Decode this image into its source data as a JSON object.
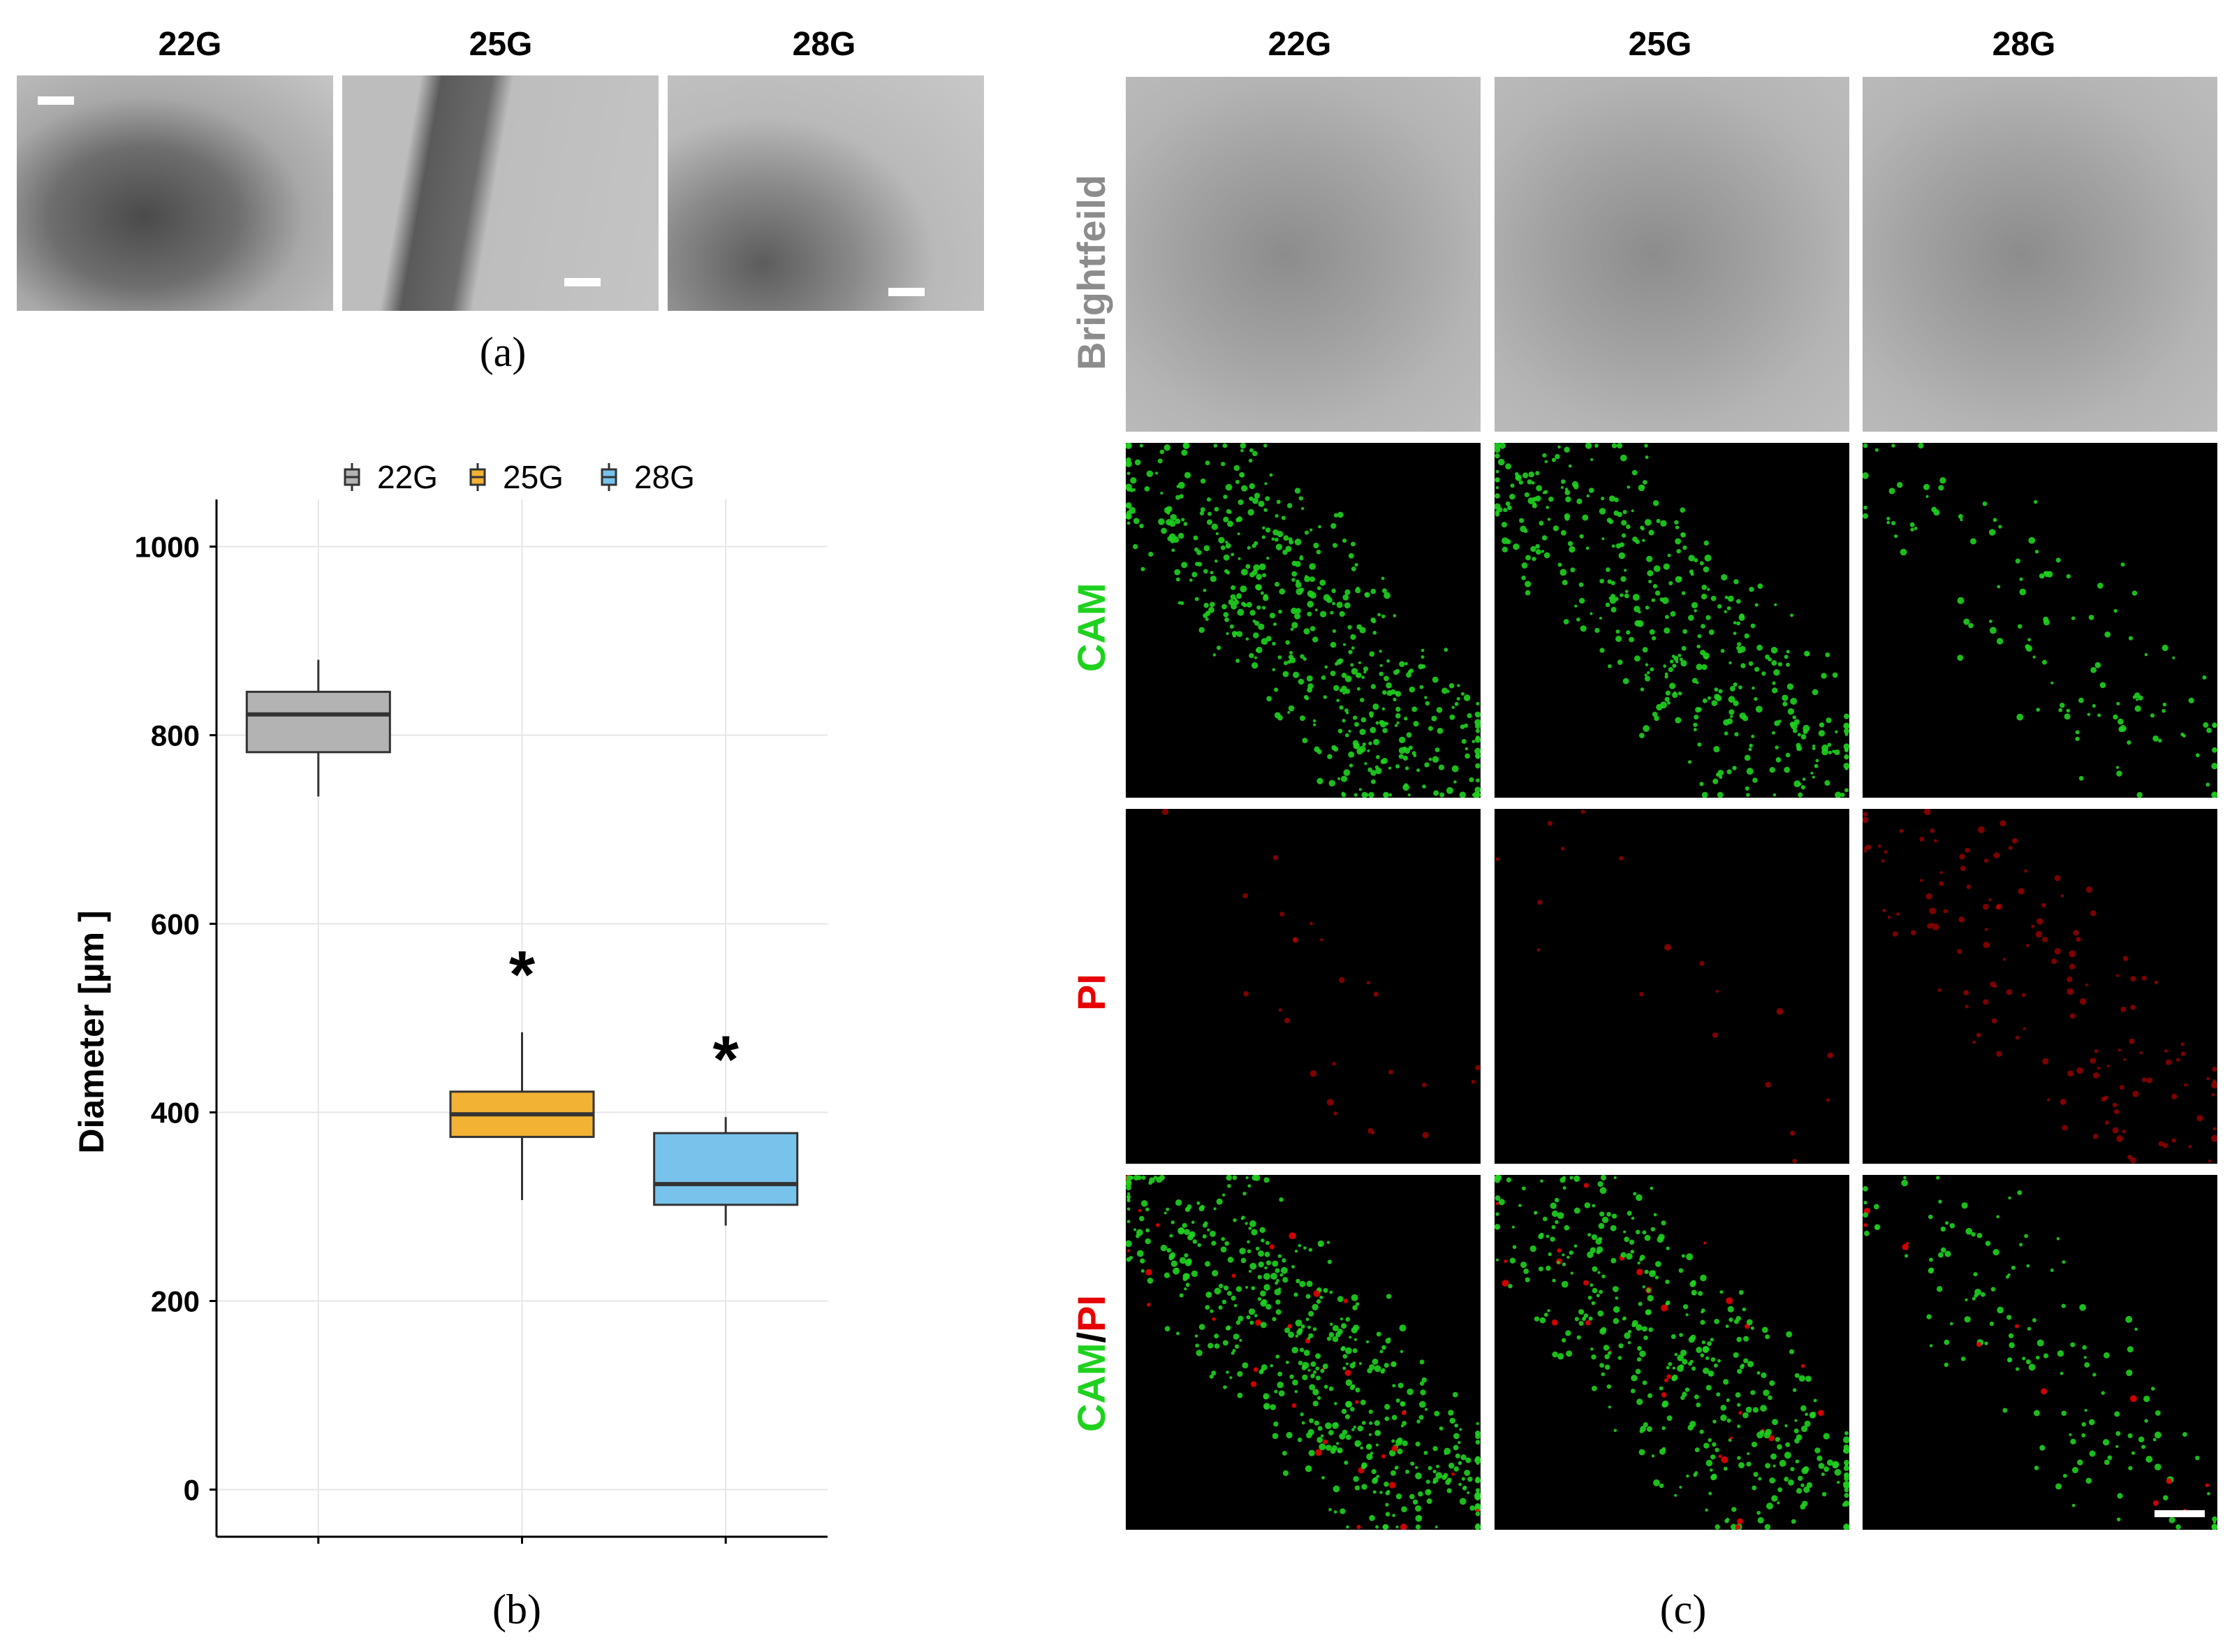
{
  "panel_a": {
    "columns": [
      "22G",
      "25G",
      "28G"
    ],
    "label": "(a)"
  },
  "panel_b": {
    "label": "(b)"
  },
  "panel_c": {
    "columns": [
      "22G",
      "25G",
      "28G"
    ],
    "rows": {
      "brightfield": "Brightfeild",
      "cam": "CAM",
      "pi": "PI",
      "merge_cam": "CAM",
      "merge_sep": "/",
      "merge_pi": "PI"
    },
    "label": "(c)"
  },
  "colors": {
    "22G": "#b3b3b3",
    "25G": "#f2b233",
    "28G": "#77c3ec",
    "cam": "#1fd11f",
    "pi": "#e60000",
    "row_gray": "#8c8c8c"
  },
  "chart_data": {
    "type": "box",
    "legend": [
      "22G",
      "25G",
      "28G"
    ],
    "legend_position": "top",
    "categories": [
      "22G",
      "25G",
      "28G"
    ],
    "ylabel": "Diameter [µm ]",
    "xlabel": "",
    "ylim": [
      -50,
      1050
    ],
    "yticks": [
      0,
      200,
      400,
      600,
      800,
      1000
    ],
    "grid": true,
    "boxes": [
      {
        "name": "22G",
        "whisker_low": 735,
        "q1": 782,
        "median": 822,
        "q3": 846,
        "whisker_high": 880,
        "significance": ""
      },
      {
        "name": "25G",
        "whisker_low": 307,
        "q1": 374,
        "median": 398,
        "q3": 422,
        "whisker_high": 485,
        "significance": "*"
      },
      {
        "name": "28G",
        "whisker_low": 280,
        "q1": 302,
        "median": 324,
        "q3": 378,
        "whisker_high": 395,
        "significance": "*"
      }
    ]
  }
}
